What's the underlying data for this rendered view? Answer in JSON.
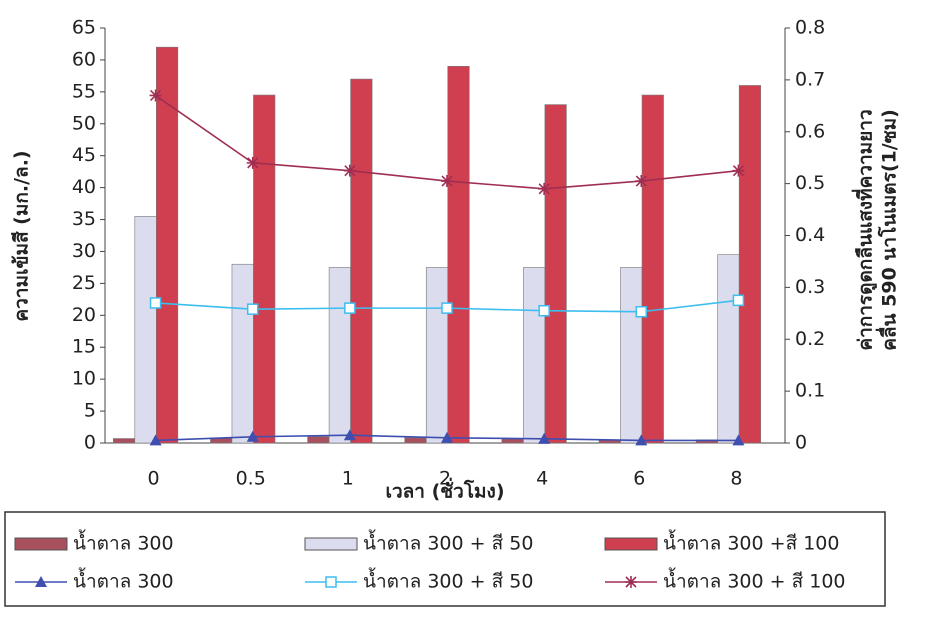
{
  "chart_data": {
    "type": "bar-line",
    "categories": [
      "0",
      "0.5",
      "1",
      "2",
      "4",
      "6",
      "8"
    ],
    "xlabel": "เวลา (ชั่วโมง)",
    "ylabel": "ความเข้มสี (มก./ล.)",
    "y2label": [
      "ค่าการดูดกลืนแสงที่ความยาว",
      "คลื่น 590 นาโนเมตร(1/ซม)"
    ],
    "ylim": [
      0,
      65
    ],
    "yticks": [
      0,
      5,
      10,
      15,
      20,
      25,
      30,
      35,
      40,
      45,
      50,
      55,
      60,
      65
    ],
    "y2lim": [
      0,
      0.8
    ],
    "y2ticks": [
      0,
      0.1,
      0.2,
      0.3,
      0.4,
      0.5,
      0.6,
      0.7,
      0.8
    ],
    "series": [
      {
        "name": "น้ำตาล 300",
        "kind": "bar",
        "color": "#a8505e",
        "values": [
          0.7,
          0.8,
          1.0,
          0.8,
          0.6,
          0.5,
          0.5
        ]
      },
      {
        "name": "น้ำตาล 300 + สี 50",
        "kind": "bar",
        "color": "#dcdcef",
        "values": [
          35.5,
          28,
          27.5,
          27.5,
          27.5,
          27.5,
          29.5
        ]
      },
      {
        "name": "น้ำตาล 300 +สี 100",
        "kind": "bar",
        "color": "#cf3f50",
        "values": [
          62,
          54.5,
          57,
          59,
          53,
          54.5,
          56
        ]
      },
      {
        "name": "น้ำตาล 300",
        "kind": "line",
        "axis": "y2",
        "marker": "triangle",
        "color": "#3f4fb0",
        "values": [
          0.005,
          0.012,
          0.015,
          0.01,
          0.008,
          0.005,
          0.005
        ]
      },
      {
        "name": "น้ำตาล 300 + สี 50",
        "kind": "line",
        "axis": "y2",
        "marker": "square",
        "color": "#3cbef0",
        "values": [
          0.27,
          0.258,
          0.26,
          0.26,
          0.255,
          0.253,
          0.275
        ]
      },
      {
        "name": "น้ำตาล 300 + สี 100",
        "kind": "line",
        "axis": "y2",
        "marker": "star",
        "color": "#a02e52",
        "values": [
          0.67,
          0.54,
          0.525,
          0.505,
          0.49,
          0.505,
          0.525
        ]
      }
    ]
  }
}
